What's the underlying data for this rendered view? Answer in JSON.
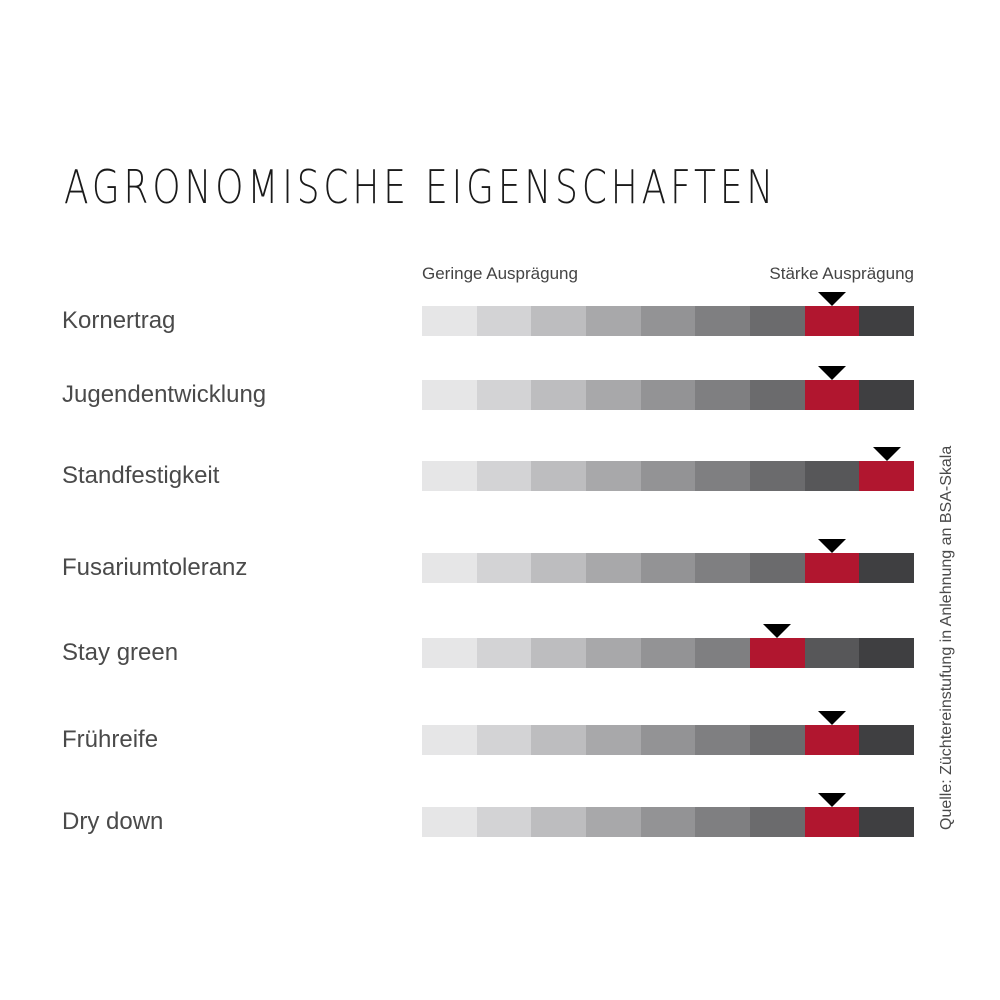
{
  "title": "AGRONOMISCHE EIGENSCHAFTEN",
  "scale_low_label": "Geringe Ausprägung",
  "scale_high_label": "Stärke Ausprägung",
  "source_note": "Quelle: Züchtereinstufung in Anlehnung an  BSA-Skala",
  "colors": {
    "segments": [
      "#e6e6e7",
      "#d3d3d5",
      "#bdbdbf",
      "#a8a8aa",
      "#939395",
      "#7f7f81",
      "#6b6b6d",
      "#575759",
      "#3f3f41"
    ],
    "highlight": "#b1162f",
    "marker": "#000000"
  },
  "chart_data": {
    "type": "table",
    "scale_steps": 9,
    "rows": [
      {
        "label": "Kornertrag",
        "value": 8
      },
      {
        "label": "Jugendentwicklung",
        "value": 8
      },
      {
        "label": "Standfestigkeit",
        "value": 9
      },
      {
        "label": "Fusariumtoleranz",
        "value": 8
      },
      {
        "label": "Stay green",
        "value": 7
      },
      {
        "label": "Frühreife",
        "value": 8
      },
      {
        "label": "Dry down",
        "value": 8
      }
    ]
  }
}
